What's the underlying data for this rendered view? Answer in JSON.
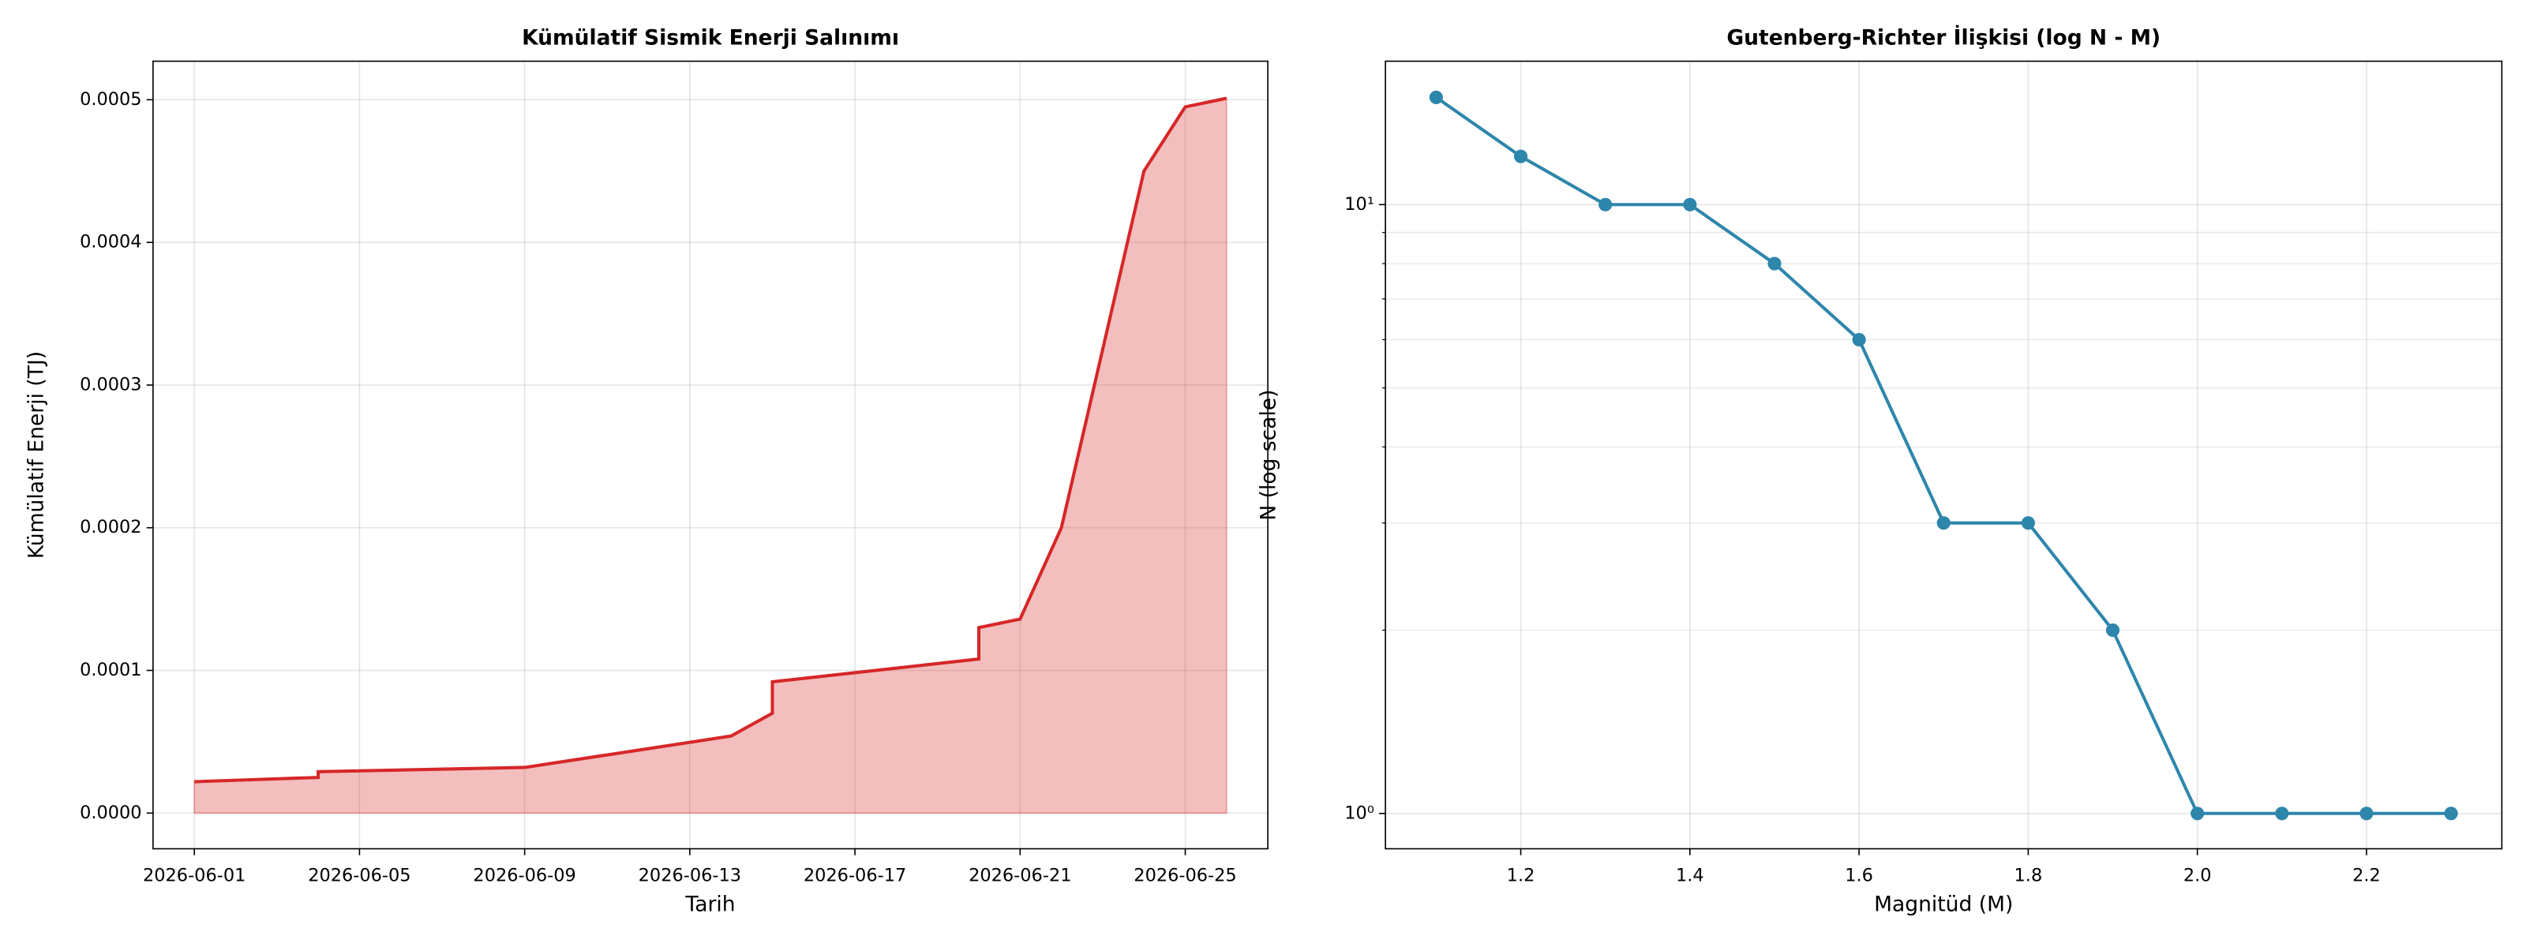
{
  "chart_data": [
    {
      "type": "area",
      "title": "Kümülatif Sismik Enerji Salınımı",
      "xlabel": "Tarih",
      "ylabel": "Kümülatif Enerji (TJ)",
      "x": [
        "2026-06-01",
        "2026-06-04",
        "2026-06-04",
        "2026-06-09",
        "2026-06-14",
        "2026-06-15",
        "2026-06-15",
        "2026-06-20",
        "2026-06-20",
        "2026-06-21",
        "2026-06-22",
        "2026-06-24",
        "2026-06-25",
        "2026-06-26"
      ],
      "series": [
        {
          "name": "Kümülatif Enerji",
          "color": "#d62728",
          "values": [
            2.2e-05,
            2.5e-05,
            2.9e-05,
            3.2e-05,
            5.4e-05,
            7e-05,
            9.2e-05,
            0.000108,
            0.00013,
            0.000136,
            0.0002,
            0.00045,
            0.000495,
            0.000501
          ]
        }
      ],
      "xlim": [
        "2026-05-31",
        "2026-06-27"
      ],
      "xticks": [
        "2026-06-01",
        "2026-06-05",
        "2026-06-09",
        "2026-06-13",
        "2026-06-17",
        "2026-06-21",
        "2026-06-25"
      ],
      "ylim": [
        -2.5e-05,
        0.000527
      ],
      "yticks": [
        {
          "value": 0,
          "label": "0.0000"
        },
        0.0001,
        0.0002,
        0.0003,
        0.0004,
        0.0005
      ],
      "grid": true
    },
    {
      "type": "line",
      "title": "Gutenberg-Richter İlişkisi (log N - M)",
      "xlabel": "Magnitüd (M)",
      "ylabel": "N (log scale)",
      "x": [
        1.1,
        1.2,
        1.3,
        1.4,
        1.5,
        1.6,
        1.7,
        1.8,
        1.9,
        2.0,
        2.1,
        2.2,
        2.3
      ],
      "series": [
        {
          "name": "N",
          "color": "#2e86ab",
          "values": [
            15,
            12,
            10,
            10,
            8,
            6,
            3,
            3,
            2,
            1,
            1,
            1,
            1
          ]
        }
      ],
      "xlim": [
        1.04,
        2.36
      ],
      "xticks": [
        1.2,
        1.4,
        1.6,
        {
          "value": 1.8,
          "label": "1.8"
        },
        {
          "value": 2,
          "label": "2.0"
        },
        2.2
      ],
      "ylim": [
        0.875,
        17.2
      ],
      "log_y": true,
      "yticks": [
        {
          "value": 1,
          "label": "10⁰"
        },
        {
          "value": 10,
          "label": "10¹"
        }
      ],
      "minor_yticks": [
        2,
        3,
        4,
        5,
        6,
        7,
        8,
        9
      ],
      "grid": true
    }
  ]
}
